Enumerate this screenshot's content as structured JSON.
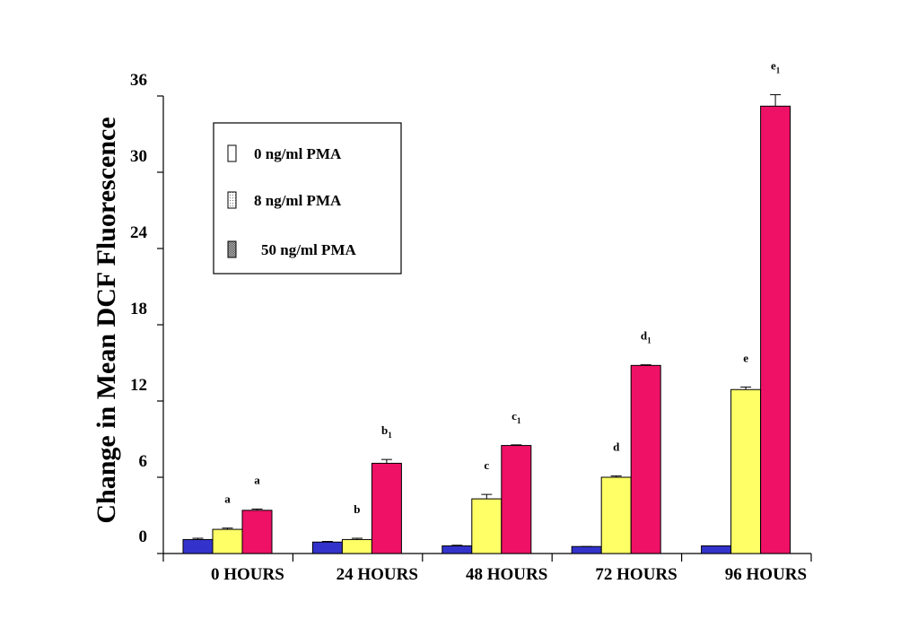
{
  "chart_data": {
    "type": "bar",
    "title": "",
    "xlabel": "",
    "ylabel": "Change in Mean DCF Fluorescence",
    "ylim": [
      0,
      36
    ],
    "yticks": [
      "0",
      "6",
      "12",
      "18",
      "24",
      "30",
      "36"
    ],
    "categories": [
      "0 HOURS",
      "24 HOURS",
      "48 HOURS",
      "72 HOURS",
      "96 HOURS"
    ],
    "legend_position": "top-left",
    "grid": false,
    "series": [
      {
        "name": "0 ng/ml PMA",
        "color": "#3333cc",
        "values": [
          1.1,
          0.9,
          0.6,
          0.55,
          0.6
        ],
        "errors": [
          0.1,
          0.05,
          0.05,
          0.0,
          0.0
        ],
        "annotations": [
          "",
          "",
          "",
          "",
          ""
        ],
        "annotation_subs": [
          "",
          "",
          "",
          "",
          ""
        ]
      },
      {
        "name": "8 ng/ml PMA",
        "color": "#ffff66",
        "values": [
          1.9,
          1.1,
          4.3,
          6.0,
          12.9
        ],
        "errors": [
          0.1,
          0.1,
          0.35,
          0.1,
          0.2
        ],
        "annotations": [
          "a",
          "b",
          "c",
          "d",
          "e"
        ],
        "annotation_subs": [
          "",
          "",
          "",
          "",
          ""
        ]
      },
      {
        "name": "50 ng/ml PMA",
        "color": "#ee1166",
        "values": [
          3.4,
          7.1,
          8.5,
          14.8,
          35.2
        ],
        "errors": [
          0.1,
          0.3,
          0.05,
          0.05,
          0.9
        ],
        "annotations": [
          "a",
          "b",
          "c",
          "d",
          "e"
        ],
        "annotation_subs": [
          "",
          "1",
          "1",
          "1",
          "1"
        ]
      }
    ]
  }
}
